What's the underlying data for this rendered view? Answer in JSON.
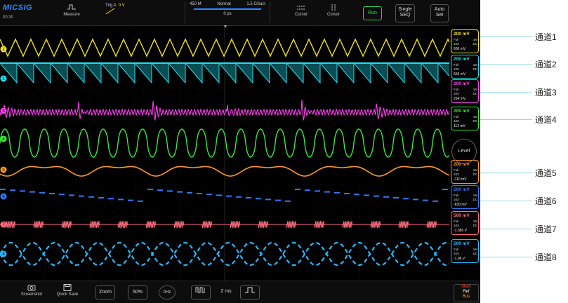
{
  "app": {
    "logo": "MICSIG",
    "clock": "00:30"
  },
  "topbar": {
    "measure_label": "Measure",
    "trigger_label": "Trig A",
    "trigger_value": "0 V",
    "memory_depth": "450 M",
    "acq_mode": "Normal",
    "sample_rate": "1.5 GSa/s",
    "time_offset": "0 ps",
    "cursor1_label": "Cursor",
    "cursor2_label": "Cursor",
    "run_label": "Run",
    "single_label_1": "Single",
    "single_label_2": "SEQ",
    "auto_label_1": "Auto",
    "auto_label_2": "Set"
  },
  "channels": [
    {
      "id": "1",
      "scale": "200 mV",
      "coupling": "Full",
      "imp": "1M",
      "probe": "10X",
      "dc": "DC",
      "offset": "600 mV",
      "color": "#f2e12a"
    },
    {
      "id": "2",
      "scale": "200 mV",
      "coupling": "Full",
      "imp": "1M",
      "probe": "10X",
      "dc": "DC",
      "offset": "556 mV",
      "color": "#1ee0f0"
    },
    {
      "id": "3",
      "scale": "200 mV",
      "coupling": "Full",
      "imp": "1M",
      "probe": "10X",
      "dc": "DC",
      "offset": "254 mV",
      "color": "#ff3ef0"
    },
    {
      "id": "4",
      "scale": "200 mV",
      "coupling": "Full",
      "imp": "1M",
      "probe": "10X",
      "dc": "DC",
      "offset": "112 mV",
      "color": "#39e83a"
    },
    {
      "id": "5",
      "scale": "200 mV",
      "coupling": "Full",
      "imp": "1M",
      "probe": "10X",
      "dc": "DC",
      "offset": "-110 mV",
      "color": "#ff9a1a"
    },
    {
      "id": "6",
      "scale": "500 mV",
      "coupling": "Full",
      "imp": "1M",
      "probe": "10X",
      "dc": "DC",
      "offset": "-830 mV",
      "color": "#2d7bff"
    },
    {
      "id": "7",
      "scale": "500 mV",
      "coupling": "Full",
      "imp": "1M",
      "probe": "10X",
      "dc": "DC",
      "offset": "-1.385 V",
      "color": "#ff6b7d"
    },
    {
      "id": "8",
      "scale": "500 mV",
      "coupling": "Full",
      "imp": "1M",
      "probe": "10X",
      "dc": "DC",
      "offset": "-1.96 V",
      "color": "#27b9ff"
    }
  ],
  "level_label": "Level",
  "bottombar": {
    "screenshot_label": "Screenshot",
    "quicksave_label": "Quick Save",
    "zoom_label": "Zoom",
    "percent_label": "50%",
    "zero_label": "0Hz",
    "timebase": "2 ms",
    "math_label": "Math",
    "ref_label": "Ref",
    "bus_label": "Bus"
  },
  "callouts": [
    "通道1",
    "通道2",
    "通道3",
    "通道4",
    "通道5",
    "通道6",
    "通道7",
    "通道8"
  ]
}
